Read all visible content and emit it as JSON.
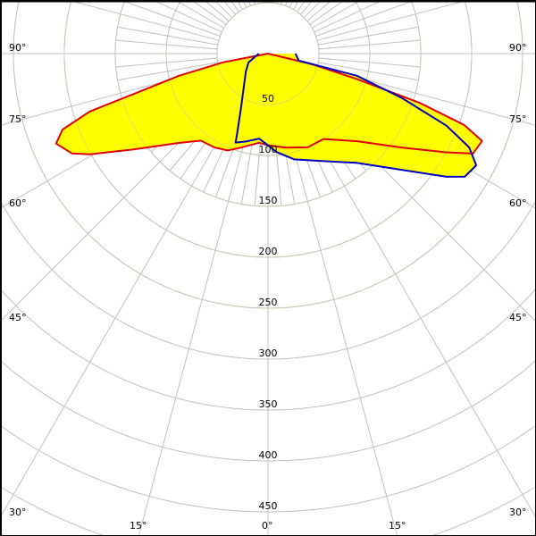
{
  "chart_data": {
    "type": "polar",
    "title": "",
    "radial_axis": {
      "ticks": [
        50,
        100,
        150,
        200,
        250,
        300,
        350,
        400,
        450
      ],
      "tick_labels": [
        "50",
        "100",
        "150",
        "200",
        "250",
        "300",
        "350",
        "400",
        "450"
      ],
      "max_drawn": 550
    },
    "angle_axis": {
      "zero_direction": "down",
      "ticks": [
        90,
        75,
        60,
        45,
        30,
        15,
        0
      ],
      "tick_labels": [
        "90°",
        "75°",
        "60°",
        "45°",
        "30°",
        "15°",
        "0°"
      ],
      "grid_step_major": 15,
      "grid_step_minor": 5
    },
    "grid": true,
    "fill_color": "#ffff00",
    "series": [
      {
        "color": "#e00000",
        "points": [
          [
            -90,
            0
          ],
          [
            -79,
            45
          ],
          [
            -76,
            90
          ],
          [
            -73.3,
            137
          ],
          [
            -72,
            184
          ],
          [
            -69.7,
            215
          ],
          [
            -67,
            226
          ],
          [
            -63,
            216
          ],
          [
            -60.5,
            201
          ],
          [
            -54.5,
            162
          ],
          [
            -45,
            124
          ],
          [
            -37.7,
            108
          ],
          [
            -29.7,
            106
          ],
          [
            -22.6,
            103
          ],
          [
            -16,
            96
          ],
          [
            -5.7,
            88
          ],
          [
            0,
            90
          ],
          [
            10.8,
            94
          ],
          [
            23,
            100
          ],
          [
            33,
            100
          ],
          [
            45.6,
            123
          ],
          [
            55,
            161
          ],
          [
            61,
            200
          ],
          [
            64,
            224
          ],
          [
            67.8,
            227
          ],
          [
            70,
            205
          ],
          [
            72,
            157
          ],
          [
            74,
            91
          ],
          [
            76.5,
            45
          ],
          [
            90,
            0
          ]
        ]
      },
      {
        "color": "#0000c0",
        "points": [
          [
            -90,
            9
          ],
          [
            -65.5,
            21
          ],
          [
            -51,
            28
          ],
          [
            -26.6,
            59
          ],
          [
            -21,
            85
          ],
          [
            -20,
            93
          ],
          [
            -14,
            89
          ],
          [
            -6,
            84
          ],
          [
            0,
            90
          ],
          [
            5,
            97
          ],
          [
            14,
            107
          ],
          [
            26.6,
            118
          ],
          [
            39,
            138
          ],
          [
            49,
            174
          ],
          [
            55.4,
            213
          ],
          [
            58,
            228
          ],
          [
            61.8,
            232
          ],
          [
            65,
            218
          ],
          [
            68,
            189
          ],
          [
            71.6,
            139
          ],
          [
            76,
            90
          ],
          [
            77,
            31
          ],
          [
            90,
            27
          ]
        ]
      }
    ]
  }
}
